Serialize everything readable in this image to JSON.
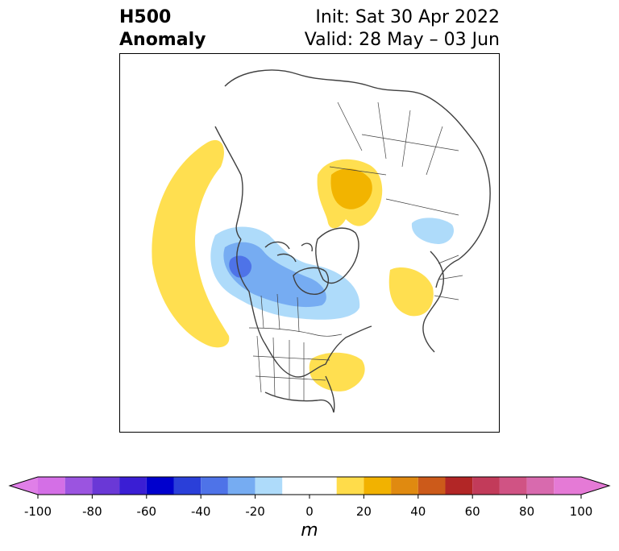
{
  "title": {
    "left_line1": "H500",
    "left_line2": "Anomaly",
    "right_line1": "Init: Sat 30 Apr 2022",
    "right_line2": "Valid: 28 May – 03 Jun"
  },
  "colorbar": {
    "unit": "m",
    "min": -100,
    "max": 100,
    "extend": "both",
    "ticks": [
      -100,
      -80,
      -60,
      -40,
      -20,
      0,
      20,
      40,
      60,
      80,
      100
    ],
    "tick_labels": [
      "-100",
      "-80",
      "-60",
      "-40",
      "-20",
      "0",
      "20",
      "40",
      "60",
      "80",
      "100"
    ],
    "levels": [
      -90,
      -80,
      -70,
      -60,
      -50,
      -40,
      -30,
      -20,
      -10,
      10,
      20,
      30,
      40,
      50,
      60,
      70,
      80,
      90
    ],
    "colors": [
      "#d46fe6",
      "#9b54e0",
      "#6a38d6",
      "#3a1ed4",
      "#0000cd",
      "#2a3fd9",
      "#4e73e8",
      "#76acf2",
      "#aedbfa",
      "#ffffff",
      "#ffdc4a",
      "#f2b200",
      "#e08a10",
      "#cc5a1a",
      "#b22626",
      "#c23b5a",
      "#d05384",
      "#d86aae",
      "#e57ad6"
    ],
    "under_color": "#e07fe8",
    "over_color": "#e57ad6"
  },
  "map": {
    "projection": "north-polar stereographic",
    "features": [
      "coastlines",
      "country borders",
      "state/province borders"
    ],
    "anomaly_regions": [
      {
        "name": "northeast-pacific-positive",
        "sign": "positive",
        "level": "10-20 m"
      },
      {
        "name": "western-russia-positive",
        "sign": "positive",
        "level": "10-30 m"
      },
      {
        "name": "north-atlantic-positive",
        "sign": "positive",
        "level": "10-20 m"
      },
      {
        "name": "eastern-us-positive",
        "sign": "positive",
        "level": "10-30 m"
      },
      {
        "name": "western-canada-negative",
        "sign": "negative",
        "level": "-10 to -40 m"
      },
      {
        "name": "siberia-negative",
        "sign": "negative",
        "level": "-10 to -20 m"
      }
    ]
  }
}
